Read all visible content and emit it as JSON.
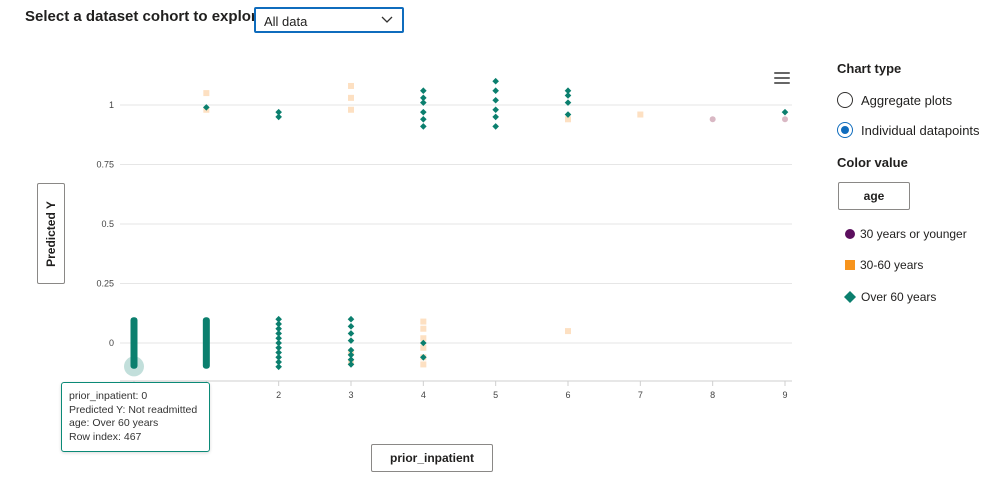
{
  "header": {
    "cohort_label": "Select a dataset cohort to explore",
    "cohort_value": "All data"
  },
  "chart": {
    "y_axis_button": "Predicted Y",
    "x_axis_button": "prior_inpatient",
    "menu_icon": "hamburger-menu-icon"
  },
  "tooltip": {
    "line1": "prior_inpatient: 0",
    "line2": "Predicted Y: Not readmitted",
    "line3": "age: Over 60 years",
    "line4": "Row index: 467"
  },
  "sidebar": {
    "chart_type_heading": "Chart type",
    "chart_type_options": [
      "Aggregate plots",
      "Individual datapoints"
    ],
    "chart_type_selected": "Individual datapoints",
    "color_value_heading": "Color value",
    "color_value_button": "age",
    "legend": [
      {
        "label": "30 years or younger",
        "color": "#5c0f5e",
        "shape": "circle"
      },
      {
        "label": "30-60 years",
        "color": "#f7941d",
        "shape": "square"
      },
      {
        "label": "Over 60 years",
        "color": "#0b7f6e",
        "shape": "diamond"
      }
    ]
  },
  "chart_data": {
    "type": "scatter",
    "xlabel": "prior_inpatient",
    "ylabel": "Predicted Y",
    "xlim": [
      0,
      9
    ],
    "ylim": [
      -0.1,
      1.1
    ],
    "x_ticks": [
      "0",
      "1",
      "2",
      "3",
      "4",
      "5",
      "6",
      "7",
      "8",
      "9"
    ],
    "y_ticks": [
      "0",
      "0.25",
      "0.5",
      "0.75",
      "1"
    ],
    "grid": true,
    "highlighted_point": {
      "x": 0,
      "y": -0.09
    },
    "series": [
      {
        "name": "30 years or younger",
        "color": "#5c0f5e",
        "shape": "circle",
        "points": [
          [
            8,
            0.94
          ],
          [
            9,
            0.94
          ]
        ]
      },
      {
        "name": "30-60 years",
        "color": "#f7941d",
        "shape": "square",
        "points": [
          [
            1,
            1.05
          ],
          [
            1,
            0.98
          ],
          [
            3,
            1.08
          ],
          [
            3,
            1.03
          ],
          [
            3,
            0.98
          ],
          [
            4,
            0.06
          ],
          [
            4,
            0.02
          ],
          [
            4,
            -0.02
          ],
          [
            4,
            -0.06
          ],
          [
            4,
            0.09
          ],
          [
            4,
            -0.09
          ],
          [
            3,
            -0.04
          ],
          [
            3,
            -0.08
          ],
          [
            6,
            0.05
          ],
          [
            6,
            0.94
          ],
          [
            7,
            0.96
          ]
        ]
      },
      {
        "name": "Over 60 years",
        "color": "#0b7f6e",
        "shape": "diamond",
        "points": [
          [
            1,
            0.99
          ],
          [
            2,
            0.97
          ],
          [
            2,
            0.95
          ],
          [
            4,
            1.06
          ],
          [
            4,
            1.03
          ],
          [
            4,
            1.01
          ],
          [
            4,
            0.97
          ],
          [
            4,
            0.94
          ],
          [
            4,
            0.91
          ],
          [
            5,
            1.1
          ],
          [
            5,
            1.06
          ],
          [
            5,
            1.02
          ],
          [
            5,
            0.98
          ],
          [
            5,
            0.95
          ],
          [
            5,
            0.91
          ],
          [
            6,
            1.06
          ],
          [
            6,
            1.04
          ],
          [
            6,
            1.01
          ],
          [
            6,
            0.96
          ],
          [
            9,
            0.97
          ],
          [
            3,
            0.1
          ],
          [
            3,
            0.07
          ],
          [
            3,
            0.04
          ],
          [
            3,
            0.01
          ],
          [
            3,
            -0.03
          ],
          [
            3,
            -0.05
          ],
          [
            3,
            -0.07
          ],
          [
            3,
            -0.09
          ],
          [
            4,
            0.0
          ],
          [
            4,
            -0.06
          ],
          [
            2,
            0.1
          ],
          [
            2,
            0.08
          ],
          [
            2,
            0.06
          ],
          [
            2,
            0.04
          ],
          [
            2,
            0.02
          ],
          [
            2,
            0.0
          ],
          [
            2,
            -0.02
          ],
          [
            2,
            -0.04
          ],
          [
            2,
            -0.06
          ],
          [
            2,
            -0.08
          ],
          [
            2,
            -0.1
          ]
        ],
        "dense_columns": [
          {
            "x": 0,
            "y_from": -0.1,
            "y_to": 0.1
          },
          {
            "x": 1,
            "y_from": -0.1,
            "y_to": 0.1
          }
        ]
      }
    ]
  }
}
